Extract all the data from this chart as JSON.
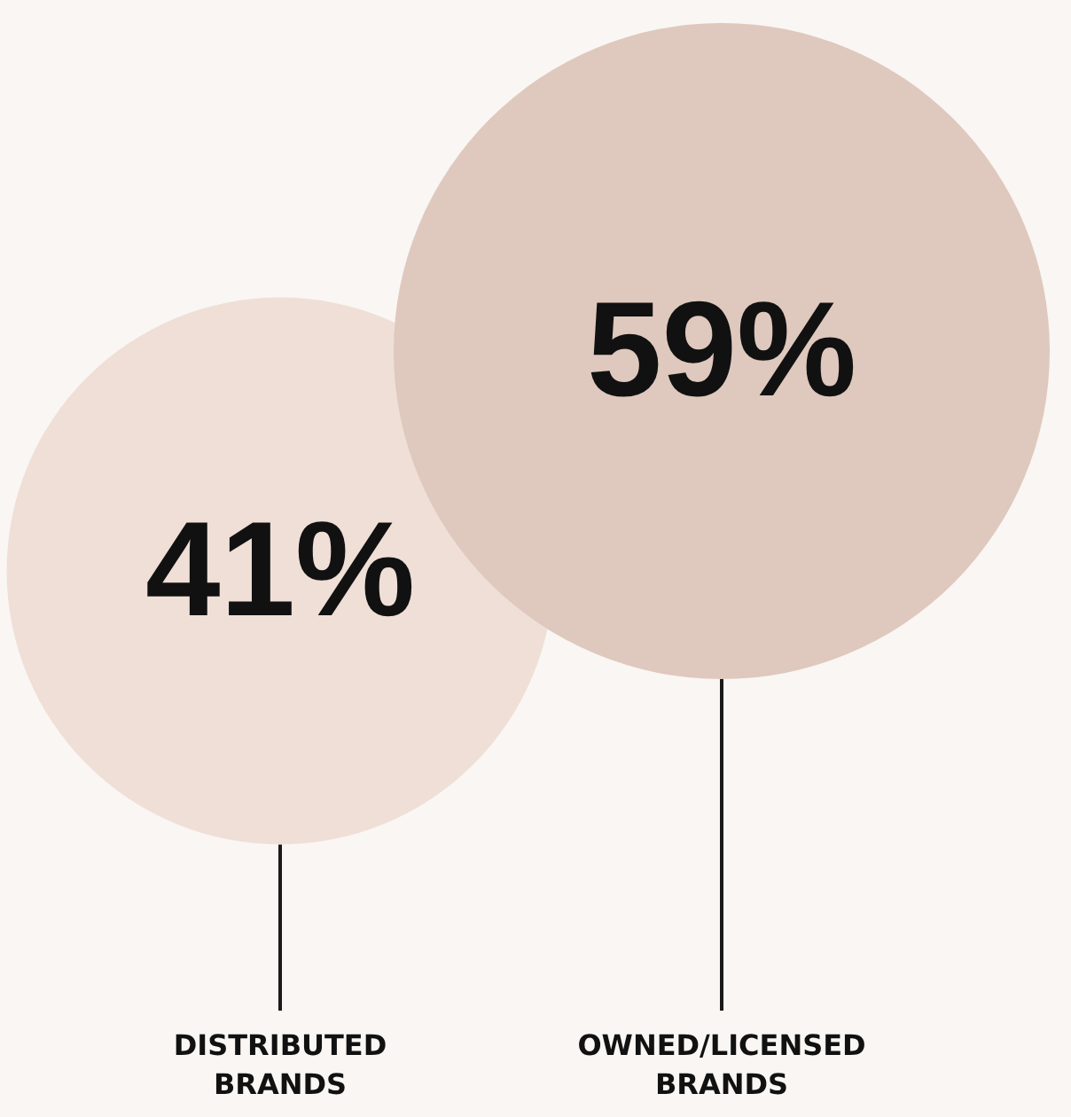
{
  "chart_data": {
    "type": "other",
    "categories": [
      "DISTRIBUTED\nBRANDS",
      "OWNED/LICENSED\nBRANDS"
    ],
    "values": [
      41,
      59
    ],
    "colors": [
      "#efdfd7",
      "#dfc8bd"
    ],
    "value_labels": [
      "41%",
      "59%"
    ]
  }
}
